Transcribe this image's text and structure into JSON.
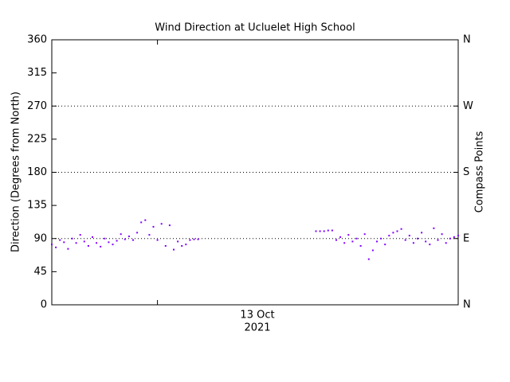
{
  "chart_data": {
    "type": "scatter",
    "title": "Wind Direction at Ucluelet High School",
    "ylabel": "Direction (Degrees from North)",
    "y2label": "Compass Points",
    "x_label_lines": [
      "13 Oct",
      "2021"
    ],
    "xlim": [
      0,
      100
    ],
    "xticks": [
      26
    ],
    "ylim": [
      0,
      360
    ],
    "yticks": [
      0,
      45,
      90,
      135,
      180,
      225,
      270,
      315,
      360
    ],
    "y2lim": [
      0,
      360
    ],
    "y2ticks": [
      {
        "value": 0,
        "label": "N"
      },
      {
        "value": 90,
        "label": "E"
      },
      {
        "value": 180,
        "label": "S"
      },
      {
        "value": 270,
        "label": "W"
      },
      {
        "value": 360,
        "label": "N"
      }
    ],
    "grid": true,
    "series": [
      {
        "color": "#8000ff",
        "x": [
          0,
          1,
          2,
          3,
          4,
          5,
          6,
          7,
          8,
          9,
          10,
          11,
          12,
          13,
          14,
          15,
          16,
          17,
          18,
          19,
          20,
          21,
          22,
          23,
          24,
          25,
          26,
          27,
          28,
          29,
          30,
          31,
          32,
          33,
          34,
          35,
          36,
          65,
          66,
          67,
          68,
          69,
          70,
          71,
          72,
          73,
          74,
          75,
          76,
          77,
          78,
          79,
          80,
          81,
          82,
          83,
          84,
          85,
          86,
          87,
          88,
          89,
          90,
          91,
          92,
          93,
          94,
          95,
          96,
          97,
          98,
          99,
          100
        ],
        "values": [
          82,
          78,
          88,
          85,
          76,
          90,
          84,
          95,
          86,
          80,
          92,
          84,
          79,
          90,
          85,
          82,
          87,
          96,
          89,
          93,
          88,
          98,
          112,
          115,
          95,
          106,
          88,
          110,
          80,
          108,
          75,
          86,
          80,
          82,
          88,
          89,
          89,
          100,
          100,
          100,
          101,
          101,
          88,
          92,
          84,
          95,
          86,
          90,
          80,
          96,
          62,
          74,
          86,
          90,
          82,
          94,
          98,
          100,
          103,
          88,
          94,
          84,
          90,
          98,
          86,
          82,
          104,
          88,
          96,
          84,
          90,
          92,
          94
        ]
      }
    ]
  }
}
